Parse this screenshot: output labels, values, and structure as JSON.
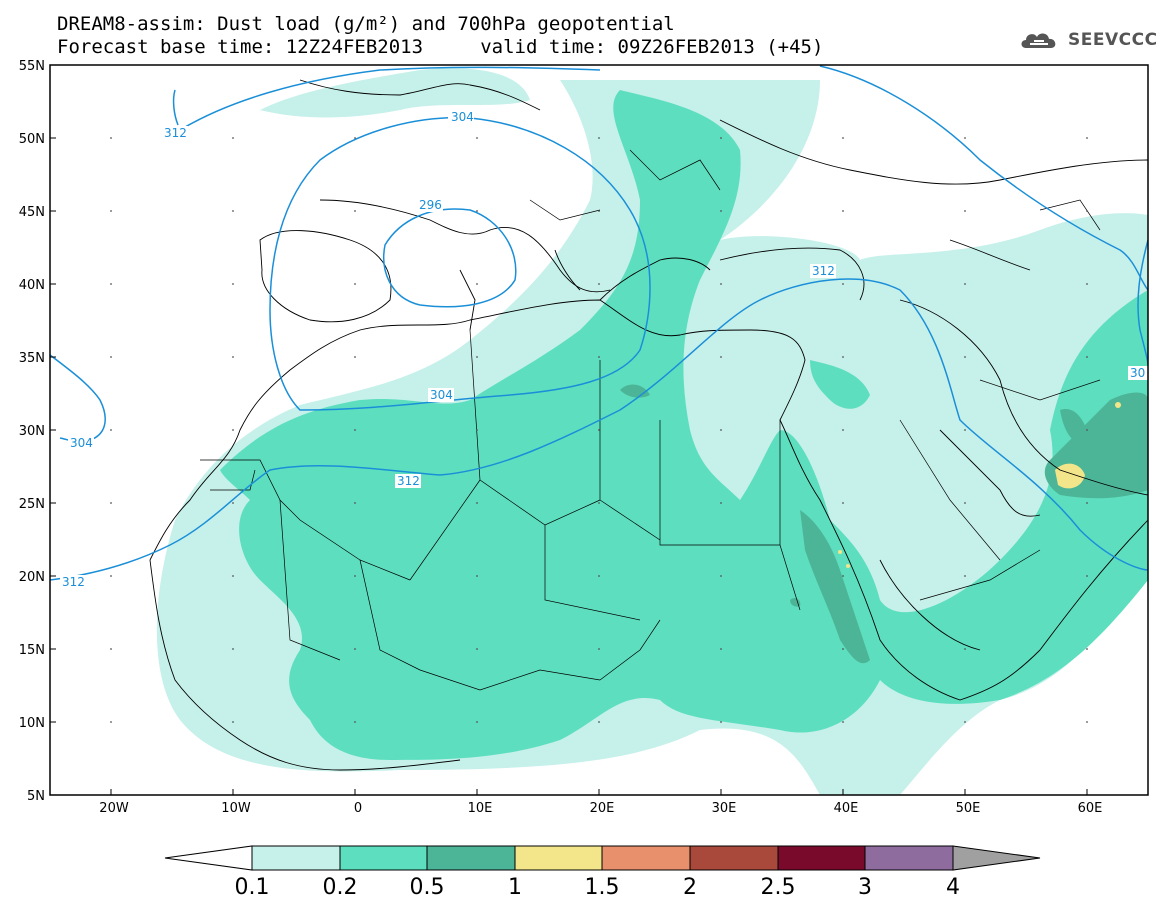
{
  "title": {
    "line1": "DREAM8-assim: Dust load (g/m²) and 700hPa geopotential",
    "line2": "Forecast base time: 12Z24FEB2013     valid time: 09Z26FEB2013 (+45)"
  },
  "logo": {
    "text": "SEEVCCC",
    "icon": "cloud-icon"
  },
  "map": {
    "lon_range": [
      -25,
      65
    ],
    "lat_range": [
      5,
      55
    ],
    "lat_labels": [
      "55N",
      "50N",
      "45N",
      "40N",
      "35N",
      "30N",
      "25N",
      "20N",
      "15N",
      "10N",
      "5N"
    ],
    "lon_labels": [
      "20W",
      "10W",
      "0",
      "10E",
      "20E",
      "30E",
      "40E",
      "50E",
      "60E"
    ],
    "contour_labels": [
      "312",
      "304",
      "296",
      "312",
      "304",
      "312",
      "312",
      "304",
      "30"
    ]
  },
  "colorbar": {
    "levels": [
      "0.1",
      "0.2",
      "0.5",
      "1",
      "1.5",
      "2",
      "2.5",
      "3",
      "4"
    ],
    "colors": [
      "#c6f0ea",
      "#5ddfbf",
      "#4db597",
      "#f3e68a",
      "#e88f6b",
      "#a8493b",
      "#7a0a2c",
      "#8e6c9e",
      "#a0a0a0"
    ],
    "under_color": "#ffffff",
    "over_color": "#a0a0a0"
  },
  "colors": {
    "dust_low": "#c6f0ea",
    "dust_mid": "#5ddfbf",
    "dust_high": "#4db597",
    "dust_peak": "#f3e68a",
    "contour": "#1a8fd8",
    "coast": "#000000"
  }
}
